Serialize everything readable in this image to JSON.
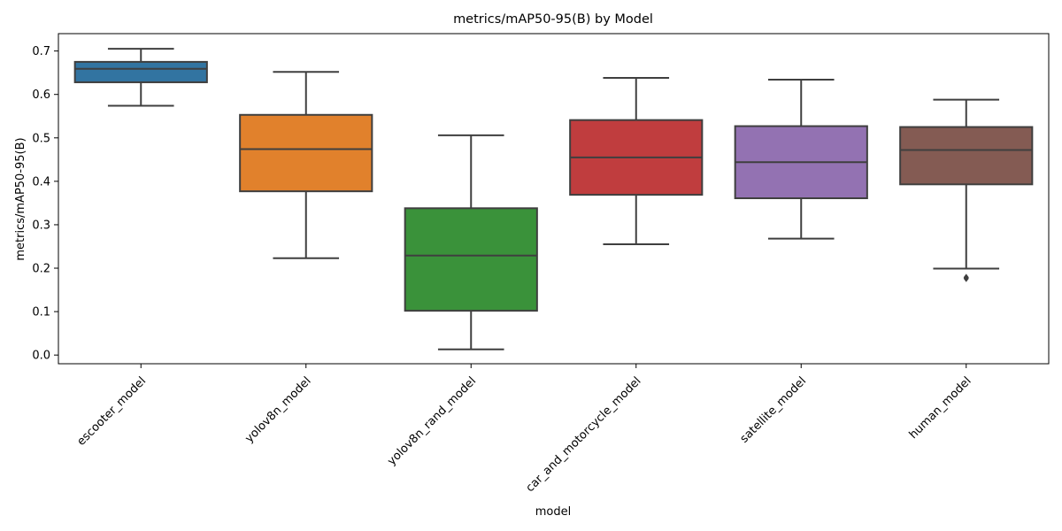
{
  "chart_data": {
    "type": "box",
    "title": "metrics/mAP50-95(B) by Model",
    "xlabel": "model",
    "ylabel": "metrics/mAP50-95(B)",
    "ylim": [
      -0.02,
      0.74
    ],
    "yticks": [
      0.0,
      0.1,
      0.2,
      0.3,
      0.4,
      0.5,
      0.6,
      0.7
    ],
    "ytick_labels": [
      "0.0",
      "0.1",
      "0.2",
      "0.3",
      "0.4",
      "0.5",
      "0.6",
      "0.7"
    ],
    "grid": false,
    "categories": [
      "escooter_model",
      "yolov8n_model",
      "yolov8n_rand_model",
      "car_and_motorcycle_model",
      "satellite_model",
      "human_model"
    ],
    "boxes": [
      {
        "category": "escooter_model",
        "whisker_low": 0.574,
        "q1": 0.628,
        "median": 0.659,
        "q3": 0.675,
        "whisker_high": 0.705,
        "outliers": [],
        "color": "#3274a1"
      },
      {
        "category": "yolov8n_model",
        "whisker_low": 0.223,
        "q1": 0.377,
        "median": 0.474,
        "q3": 0.553,
        "whisker_high": 0.652,
        "outliers": [],
        "color": "#e1812c"
      },
      {
        "category": "yolov8n_rand_model",
        "whisker_low": 0.013,
        "q1": 0.102,
        "median": 0.229,
        "q3": 0.338,
        "whisker_high": 0.506,
        "outliers": [],
        "color": "#3a923a"
      },
      {
        "category": "car_and_motorcycle_model",
        "whisker_low": 0.255,
        "q1": 0.369,
        "median": 0.455,
        "q3": 0.541,
        "whisker_high": 0.638,
        "outliers": [],
        "color": "#c03d3e"
      },
      {
        "category": "satellite_model",
        "whisker_low": 0.268,
        "q1": 0.361,
        "median": 0.444,
        "q3": 0.527,
        "whisker_high": 0.634,
        "outliers": [],
        "color": "#9372b2"
      },
      {
        "category": "human_model",
        "whisker_low": 0.199,
        "q1": 0.393,
        "median": 0.472,
        "q3": 0.525,
        "whisker_high": 0.588,
        "outliers": [
          0.176,
          0.179
        ],
        "color": "#845b53"
      }
    ]
  }
}
